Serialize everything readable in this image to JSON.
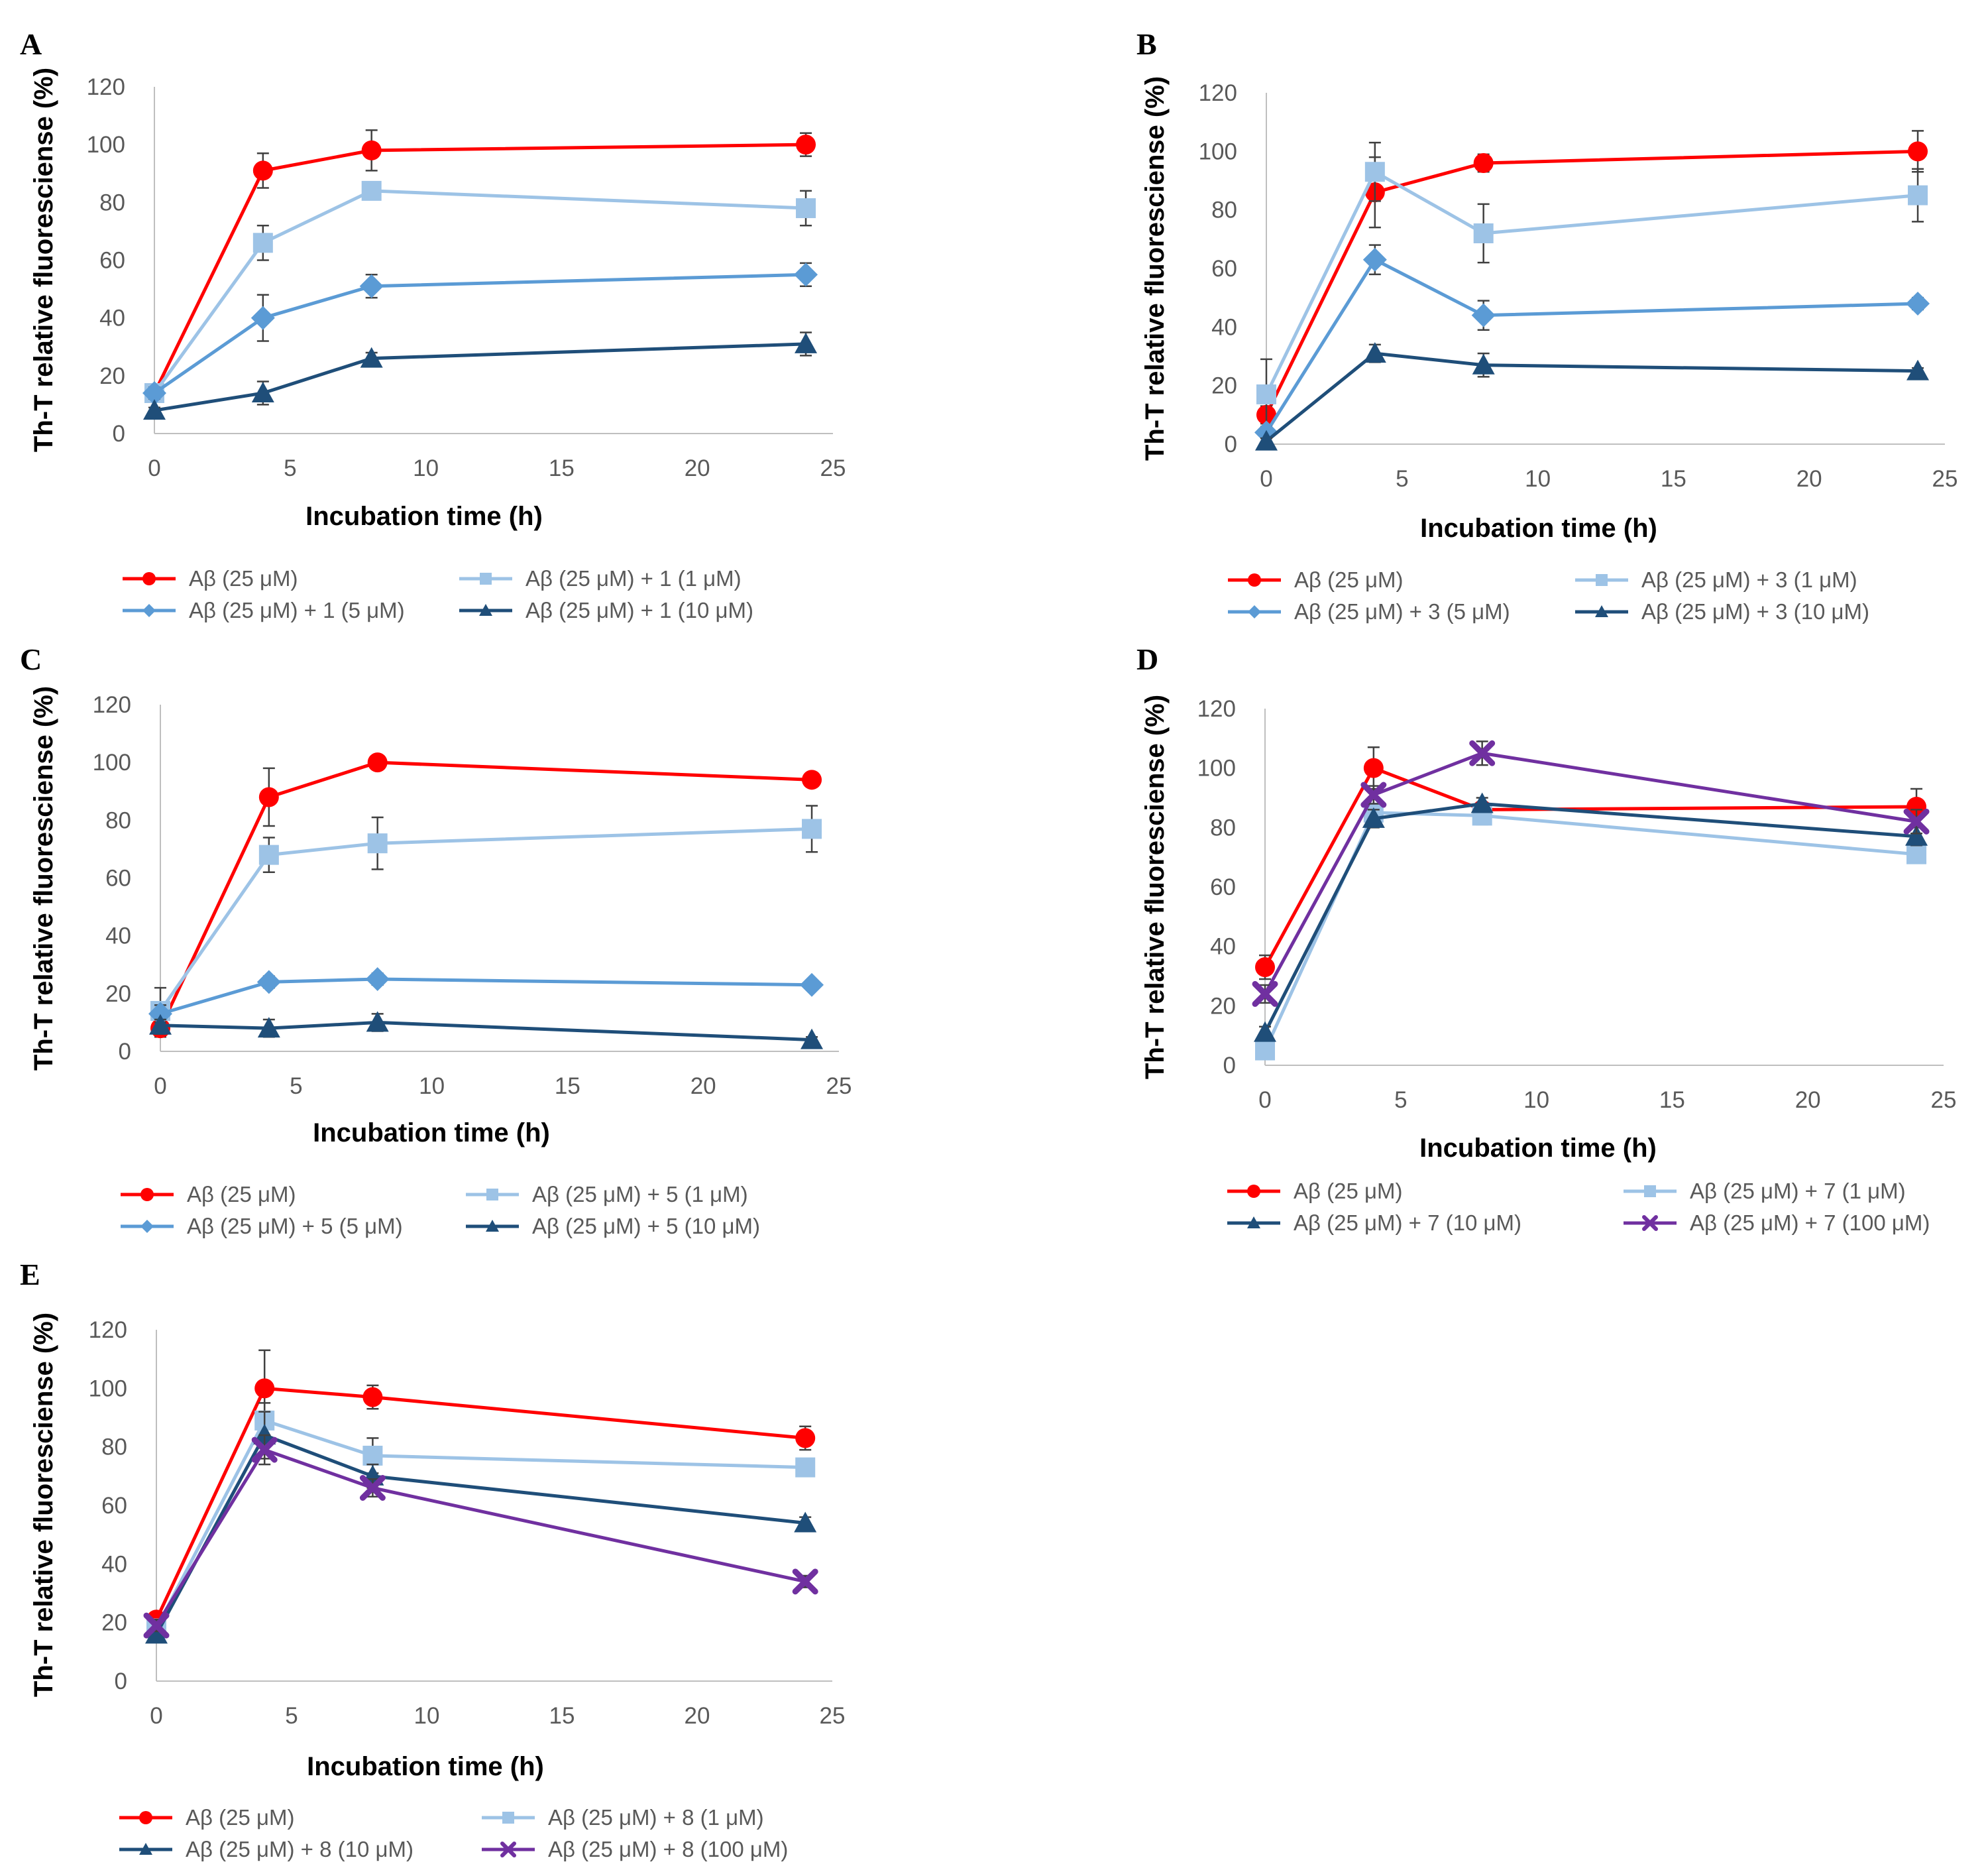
{
  "colors": {
    "ab": "#ff0000",
    "c1": "#9dc3e6",
    "c5": "#5b9bd5",
    "c10": "#1f4e79",
    "c100": "#7030a0",
    "tick_text": "#595959",
    "axis": "#bfbfbf",
    "error_bar": "#404040"
  },
  "chart_data": [
    {
      "panel": "A",
      "type": "line",
      "xlabel": "Incubation time (h)",
      "ylabel": "Th-T relative fluoresciense (%)",
      "xlim": [
        0,
        25
      ],
      "ylim": [
        0,
        120
      ],
      "xticks": [
        0,
        5,
        10,
        15,
        20,
        25
      ],
      "yticks": [
        0,
        20,
        40,
        60,
        80,
        100,
        120
      ],
      "x": [
        0,
        4,
        8,
        24
      ],
      "series": [
        {
          "name": "Aβ (25 μM)",
          "color_key": "ab",
          "marker": "circle",
          "values": [
            14,
            91,
            98,
            100
          ],
          "errors": [
            2,
            6,
            7,
            4
          ]
        },
        {
          "name": "Aβ (25 μM) + 1 (1 μM)",
          "color_key": "c1",
          "marker": "square",
          "values": [
            14,
            66,
            84,
            78
          ],
          "errors": [
            2,
            6,
            3,
            6
          ]
        },
        {
          "name": "Aβ (25 μM) + 1 (5 μM)",
          "color_key": "c5",
          "marker": "diamond",
          "values": [
            14,
            40,
            51,
            55
          ],
          "errors": [
            2,
            8,
            4,
            4
          ]
        },
        {
          "name": "Aβ (25 μM) + 1 (10 μM)",
          "color_key": "c10",
          "marker": "triangle",
          "values": [
            8,
            14,
            26,
            31
          ],
          "errors": [
            1,
            4,
            2,
            4
          ]
        }
      ]
    },
    {
      "panel": "B",
      "type": "line",
      "xlabel": "Incubation time (h)",
      "ylabel": "Th-T relative fluoresciense (%)",
      "xlim": [
        0,
        25
      ],
      "ylim": [
        0,
        120
      ],
      "xticks": [
        0,
        5,
        10,
        15,
        20,
        25
      ],
      "yticks": [
        0,
        20,
        40,
        60,
        80,
        100,
        120
      ],
      "x": [
        0,
        4,
        8,
        24
      ],
      "series": [
        {
          "name": "Aβ (25 μM)",
          "color_key": "ab",
          "marker": "circle",
          "values": [
            10,
            86,
            96,
            100
          ],
          "errors": [
            3,
            12,
            3,
            7
          ]
        },
        {
          "name": "Aβ (25 μM) + 3 (1 μM)",
          "color_key": "c1",
          "marker": "square",
          "values": [
            17,
            93,
            72,
            85
          ],
          "errors": [
            12,
            10,
            10,
            9
          ]
        },
        {
          "name": "Aβ (25 μM) + 3 (5 μM)",
          "color_key": "c5",
          "marker": "diamond",
          "values": [
            4,
            63,
            44,
            48
          ],
          "errors": [
            2,
            5,
            5,
            2
          ]
        },
        {
          "name": "Aβ (25 μM) + 3 (10 μM)",
          "color_key": "c10",
          "marker": "triangle",
          "values": [
            1,
            31,
            27,
            25
          ],
          "errors": [
            1,
            3,
            4,
            1
          ]
        }
      ]
    },
    {
      "panel": "C",
      "type": "line",
      "xlabel": "Incubation time (h)",
      "ylabel": "Th-T relative fluoresciense (%)",
      "xlim": [
        0,
        25
      ],
      "ylim": [
        0,
        120
      ],
      "xticks": [
        0,
        5,
        10,
        15,
        20,
        25
      ],
      "yticks": [
        0,
        20,
        40,
        60,
        80,
        100,
        120
      ],
      "x": [
        0,
        4,
        8,
        24
      ],
      "series": [
        {
          "name": "Aβ (25 μM)",
          "color_key": "ab",
          "marker": "circle",
          "values": [
            8,
            88,
            100,
            94
          ],
          "errors": [
            3,
            10,
            2,
            2
          ]
        },
        {
          "name": "Aβ (25 μM) + 5 (1 μM)",
          "color_key": "c1",
          "marker": "square",
          "values": [
            14,
            68,
            72,
            77
          ],
          "errors": [
            8,
            6,
            9,
            8
          ]
        },
        {
          "name": "Aβ (25 μM) + 5 (5 μM)",
          "color_key": "c5",
          "marker": "diamond",
          "values": [
            13,
            24,
            25,
            23
          ],
          "errors": [
            3,
            2,
            2,
            1
          ]
        },
        {
          "name": "Aβ (25 μM) + 5 (10 μM)",
          "color_key": "c10",
          "marker": "triangle",
          "values": [
            9,
            8,
            10,
            4
          ],
          "errors": [
            2,
            3,
            3,
            1
          ]
        }
      ]
    },
    {
      "panel": "D",
      "type": "line",
      "xlabel": "Incubation time (h)",
      "ylabel": "Th-T relative fluoresciense (%)",
      "xlim": [
        0,
        25
      ],
      "ylim": [
        0,
        120
      ],
      "xticks": [
        0,
        5,
        10,
        15,
        20,
        25
      ],
      "yticks": [
        0,
        20,
        40,
        60,
        80,
        100,
        120
      ],
      "x": [
        0,
        4,
        8,
        24
      ],
      "series": [
        {
          "name": "Aβ (25 μM)",
          "color_key": "ab",
          "marker": "circle",
          "values": [
            33,
            100,
            86,
            87
          ],
          "errors": [
            4,
            7,
            2,
            6
          ]
        },
        {
          "name": "Aβ (25 μM) + 7 (1 μM)",
          "color_key": "c1",
          "marker": "square",
          "values": [
            5,
            85,
            84,
            71
          ],
          "errors": [
            2,
            3,
            3,
            2
          ]
        },
        {
          "name": "Aβ (25 μM) + 7 (10 μM)",
          "color_key": "c10",
          "marker": "triangle",
          "values": [
            11,
            83,
            88,
            77
          ],
          "errors": [
            2,
            3,
            2,
            3
          ]
        },
        {
          "name": "Aβ (25 μM) + 7 (100 μM)",
          "color_key": "c100",
          "marker": "x",
          "values": [
            24,
            91,
            105,
            82
          ],
          "errors": [
            3,
            3,
            4,
            4
          ]
        }
      ]
    },
    {
      "panel": "E",
      "type": "line",
      "xlabel": "Incubation time (h)",
      "ylabel": "Th-T relative fluoresciense (%)",
      "xlim": [
        0,
        25
      ],
      "ylim": [
        0,
        120
      ],
      "xticks": [
        0,
        5,
        10,
        15,
        20,
        25
      ],
      "yticks": [
        0,
        20,
        40,
        60,
        80,
        100,
        120
      ],
      "x": [
        0,
        4,
        8,
        24
      ],
      "series": [
        {
          "name": "Aβ (25 μM)",
          "color_key": "ab",
          "marker": "circle",
          "values": [
            21,
            100,
            97,
            83
          ],
          "errors": [
            2,
            13,
            4,
            4
          ]
        },
        {
          "name": "Aβ (25 μM) + 8 (1 μM)",
          "color_key": "c1",
          "marker": "square",
          "values": [
            18,
            89,
            77,
            73
          ],
          "errors": [
            2,
            6,
            6,
            3
          ]
        },
        {
          "name": "Aβ (25 μM) + 8 (10 μM)",
          "color_key": "c10",
          "marker": "triangle",
          "values": [
            16,
            84,
            70,
            54
          ],
          "errors": [
            2,
            8,
            4,
            2
          ]
        },
        {
          "name": "Aβ (25 μM) + 8 (100 μM)",
          "color_key": "c100",
          "marker": "x",
          "values": [
            19,
            79,
            66,
            34
          ],
          "errors": [
            2,
            5,
            3,
            2
          ]
        }
      ]
    }
  ]
}
